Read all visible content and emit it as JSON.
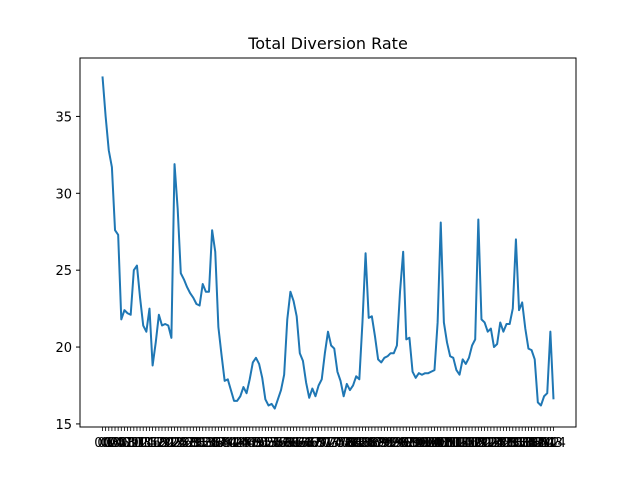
{
  "chart_data": {
    "type": "line",
    "title": "Total Diversion Rate",
    "xlabel": "",
    "ylabel": "",
    "grid": false,
    "legend": "none",
    "line_color": "#1f77b4",
    "ylim": [
      14.8,
      38.8
    ],
    "yticks": [
      15,
      20,
      25,
      30,
      35
    ],
    "xtick_labels_note": "x tick labels are overlapping and unreadable; data indexed by position",
    "values": [
      37.6,
      35.0,
      32.8,
      31.7,
      27.6,
      27.3,
      21.8,
      22.4,
      22.2,
      22.1,
      25.0,
      25.3,
      23.2,
      21.4,
      21.0,
      22.5,
      18.8,
      20.3,
      22.1,
      21.4,
      21.5,
      21.4,
      20.6,
      31.9,
      29.0,
      24.8,
      24.4,
      23.9,
      23.5,
      23.2,
      22.8,
      22.7,
      24.1,
      23.6,
      23.6,
      27.6,
      26.2,
      21.3,
      19.5,
      17.8,
      17.9,
      17.2,
      16.5,
      16.5,
      16.8,
      17.4,
      17.0,
      17.9,
      19.0,
      19.3,
      18.9,
      18.0,
      16.6,
      16.2,
      16.3,
      16.0,
      16.6,
      17.2,
      18.2,
      21.8,
      23.6,
      23.0,
      22.0,
      19.6,
      19.1,
      17.7,
      16.7,
      17.3,
      16.8,
      17.5,
      17.9,
      19.6,
      21.0,
      20.1,
      19.9,
      18.4,
      17.8,
      16.8,
      17.6,
      17.2,
      17.5,
      18.1,
      17.9,
      21.6,
      26.1,
      21.9,
      22.0,
      20.7,
      19.2,
      19.0,
      19.3,
      19.4,
      19.6,
      19.6,
      20.1,
      23.6,
      26.2,
      20.5,
      20.6,
      18.4,
      18.0,
      18.3,
      18.2,
      18.3,
      18.3,
      18.4,
      18.5,
      21.6,
      28.1,
      21.6,
      20.3,
      19.4,
      19.3,
      18.5,
      18.2,
      19.2,
      18.9,
      19.3,
      20.1,
      20.5,
      28.3,
      21.8,
      21.6,
      21.0,
      21.2,
      20.0,
      20.2,
      21.6,
      21.0,
      21.5,
      21.5,
      22.5,
      27.0,
      22.4,
      22.9,
      21.2,
      19.9,
      19.8,
      19.2,
      16.4,
      16.2,
      16.8,
      17.0,
      21.0,
      16.6
    ]
  }
}
